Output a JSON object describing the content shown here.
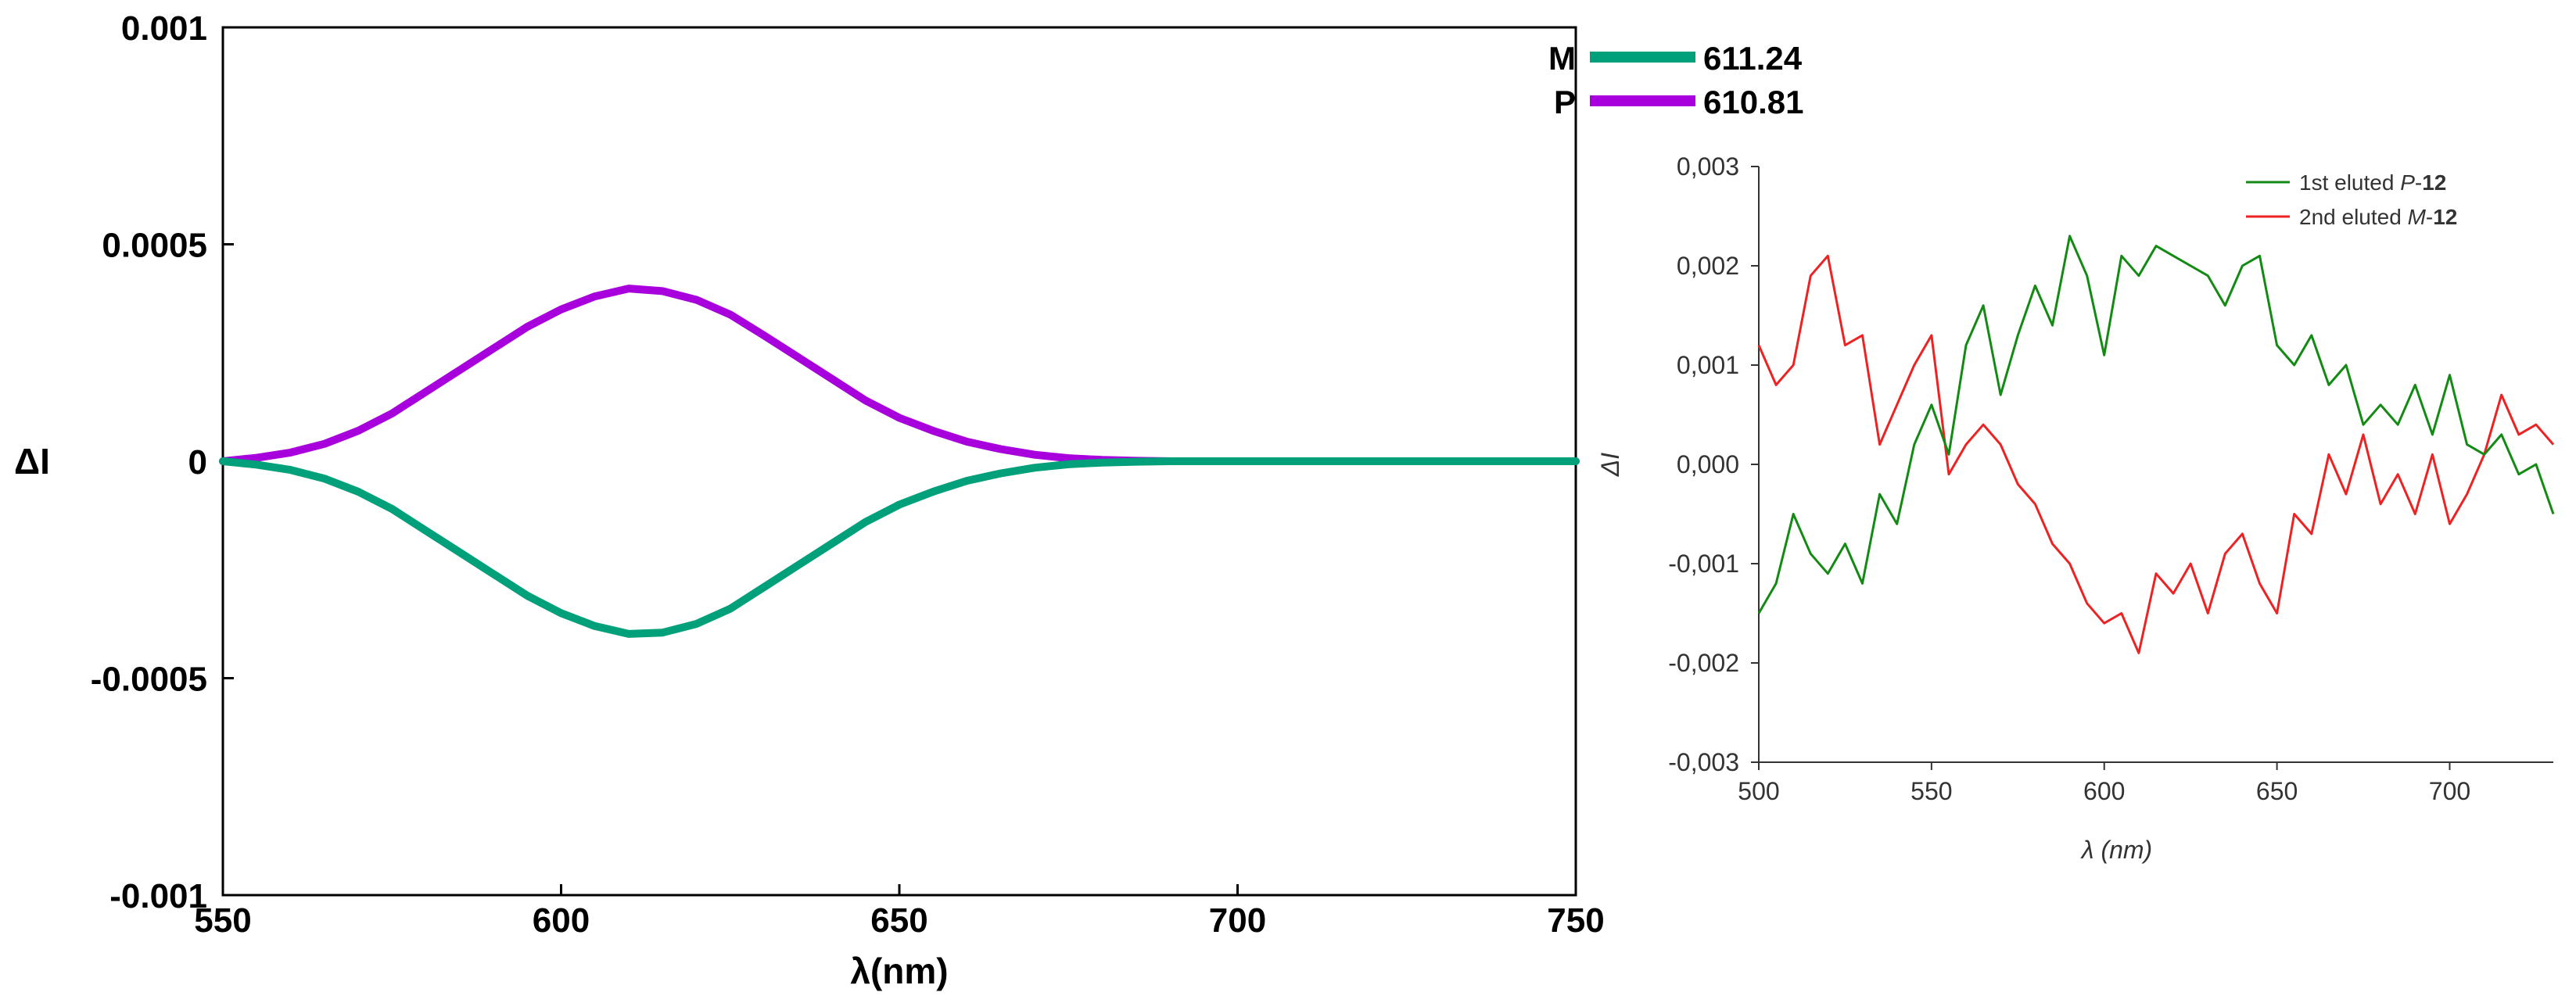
{
  "chart_data": [
    {
      "type": "line",
      "title": "",
      "xlabel": "λ(nm)",
      "ylabel": "ΔI",
      "xlim": [
        550,
        750
      ],
      "ylim": [
        -0.001,
        0.001
      ],
      "x_ticks": [
        "550",
        "600",
        "650",
        "700",
        "750"
      ],
      "y_ticks": [
        "0.001",
        "0.0005",
        "0",
        "-0.0005",
        "-0.001"
      ],
      "x_tick_values": [
        550,
        600,
        650,
        700,
        750
      ],
      "y_tick_values": [
        0.001,
        0.0005,
        0,
        -0.0005,
        -0.001
      ],
      "grid": false,
      "legend_position": "top-right",
      "legend": [
        {
          "name": "M",
          "value_label": "611.24",
          "color": "#00a07a"
        },
        {
          "name": "P",
          "value_label": "610.81",
          "color": "#a800dc"
        }
      ],
      "x": [
        550,
        555,
        560,
        565,
        570,
        575,
        580,
        585,
        590,
        595,
        600,
        605,
        610,
        615,
        620,
        625,
        630,
        635,
        640,
        645,
        650,
        655,
        660,
        665,
        670,
        675,
        680,
        685,
        690,
        700,
        710,
        720,
        730,
        740,
        750
      ],
      "series": [
        {
          "name": "M",
          "color": "#00a07a",
          "values": [
            0,
            -8e-06,
            -2e-05,
            -4e-05,
            -7e-05,
            -0.00011,
            -0.00016,
            -0.00021,
            -0.00026,
            -0.00031,
            -0.00035,
            -0.00038,
            -0.000398,
            -0.000395,
            -0.000375,
            -0.00034,
            -0.00029,
            -0.00024,
            -0.00019,
            -0.00014,
            -0.0001,
            -7e-05,
            -4.5e-05,
            -2.8e-05,
            -1.5e-05,
            -7e-06,
            -3e-06,
            -1e-06,
            0,
            0,
            0,
            0,
            0,
            0,
            0
          ]
        },
        {
          "name": "P",
          "color": "#a800dc",
          "values": [
            0,
            8e-06,
            2e-05,
            4e-05,
            7e-05,
            0.00011,
            0.00016,
            0.00021,
            0.00026,
            0.00031,
            0.00035,
            0.00038,
            0.000398,
            0.000392,
            0.000372,
            0.000338,
            0.00029,
            0.00024,
            0.00019,
            0.00014,
            0.0001,
            7e-05,
            4.5e-05,
            2.8e-05,
            1.5e-05,
            7e-06,
            3e-06,
            1e-06,
            0,
            0,
            0,
            0,
            0,
            0,
            0
          ]
        }
      ]
    },
    {
      "type": "line",
      "title": "",
      "xlabel": "λ (nm)",
      "ylabel": "ΔI",
      "xlim": [
        500,
        730
      ],
      "ylim": [
        -0.003,
        0.003
      ],
      "x_ticks": [
        "500",
        "550",
        "600",
        "650",
        "700"
      ],
      "y_ticks": [
        "0,003",
        "0,002",
        "0,001",
        "0,000",
        "-0,001",
        "-0,002",
        "-0,003"
      ],
      "x_tick_values": [
        500,
        550,
        600,
        650,
        700
      ],
      "y_tick_values": [
        0.003,
        0.002,
        0.001,
        0,
        -0.001,
        -0.002,
        -0.003
      ],
      "grid": false,
      "legend_position": "top-right",
      "legend": [
        {
          "prefix": "1st eluted ",
          "italic": "P",
          "suffix": "-",
          "bold": "12",
          "color": "#138a13"
        },
        {
          "prefix": "2nd eluted ",
          "italic": "M",
          "suffix": "-",
          "bold": "12",
          "color": "#ee2222"
        }
      ],
      "x": [
        500,
        505,
        510,
        515,
        520,
        525,
        530,
        535,
        540,
        545,
        550,
        555,
        560,
        565,
        570,
        575,
        580,
        585,
        590,
        595,
        600,
        605,
        610,
        615,
        620,
        625,
        630,
        635,
        640,
        645,
        650,
        655,
        660,
        665,
        670,
        675,
        680,
        685,
        690,
        695,
        700,
        705,
        710,
        715,
        720,
        725,
        730
      ],
      "series": [
        {
          "name": "1st eluted P-12",
          "color": "#138a13",
          "values": [
            -0.0015,
            -0.0012,
            -0.0005,
            -0.0009,
            -0.0011,
            -0.0008,
            -0.0012,
            -0.0003,
            -0.0006,
            0.0002,
            0.0006,
            0.0001,
            0.0012,
            0.0016,
            0.0007,
            0.0013,
            0.0018,
            0.0014,
            0.0023,
            0.0019,
            0.0011,
            0.0021,
            0.0019,
            0.0022,
            0.0021,
            0.002,
            0.0019,
            0.0016,
            0.002,
            0.0021,
            0.0012,
            0.001,
            0.0013,
            0.0008,
            0.001,
            0.0004,
            0.0006,
            0.0004,
            0.0008,
            0.0003,
            0.0009,
            0.0002,
            0.0001,
            0.0003,
            -0.0001,
            0.0,
            -0.0005
          ]
        },
        {
          "name": "2nd eluted M-12",
          "color": "#ee2222",
          "values": [
            0.0012,
            0.0008,
            0.001,
            0.0019,
            0.0021,
            0.0012,
            0.0013,
            0.0002,
            0.0006,
            0.001,
            0.0013,
            -0.0001,
            0.0002,
            0.0004,
            0.0002,
            -0.0002,
            -0.0004,
            -0.0008,
            -0.001,
            -0.0014,
            -0.0016,
            -0.0015,
            -0.0019,
            -0.0011,
            -0.0013,
            -0.001,
            -0.0015,
            -0.0009,
            -0.0007,
            -0.0012,
            -0.0015,
            -0.0005,
            -0.0007,
            0.0001,
            -0.0003,
            0.0003,
            -0.0004,
            -0.0001,
            -0.0005,
            0.0001,
            -0.0006,
            -0.0003,
            0.0001,
            0.0007,
            0.0003,
            0.0004,
            0.0002
          ]
        }
      ]
    }
  ]
}
